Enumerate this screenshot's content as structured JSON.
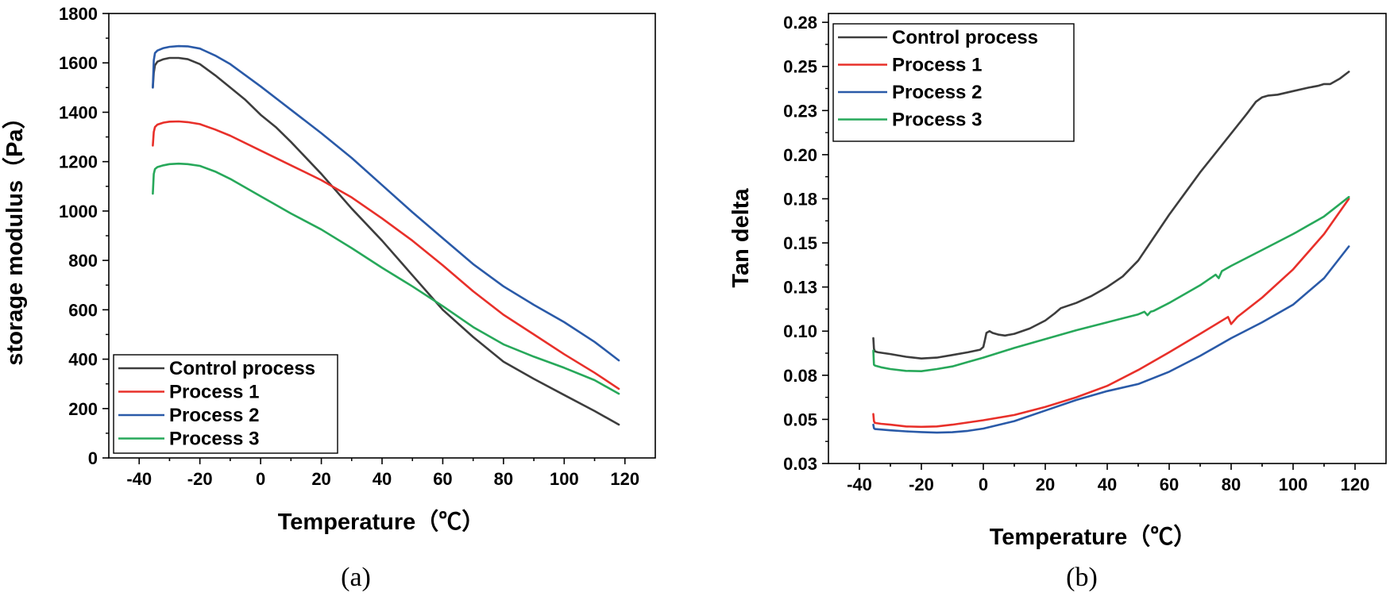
{
  "colors": {
    "Control process": "#3d3d3d",
    "Process 1": "#e8302a",
    "Process 2": "#2a5aa8",
    "Process 3": "#27a85a"
  },
  "chart_data": [
    {
      "type": "line",
      "caption": "(a)",
      "xlabel": "Temperature（℃）",
      "ylabel": "storage modulus（Pa）",
      "xlim": [
        -50,
        130
      ],
      "ylim": [
        0,
        1800
      ],
      "xticks": [
        -40,
        -20,
        0,
        20,
        40,
        60,
        80,
        100,
        120
      ],
      "yticks": [
        0,
        200,
        400,
        600,
        800,
        1000,
        1200,
        1400,
        1600,
        1800
      ],
      "xtick_labels": [
        "-40",
        "-20",
        "0",
        "20",
        "40",
        "60",
        "80",
        "100",
        "120"
      ],
      "ytick_labels": [
        "0",
        "200",
        "400",
        "600",
        "800",
        "1000",
        "1200",
        "1400",
        "1600",
        "1800"
      ],
      "legend_position": "bottom-left",
      "series": [
        {
          "name": "Control process",
          "x": [
            -35.5,
            -35.2,
            -34.8,
            -34,
            -32,
            -30,
            -27,
            -24,
            -20,
            -15,
            -10,
            -5,
            0,
            5,
            10,
            20,
            30,
            40,
            50,
            60,
            70,
            80,
            90,
            100,
            110,
            118
          ],
          "y": [
            1500,
            1560,
            1590,
            1605,
            1615,
            1620,
            1620,
            1615,
            1595,
            1550,
            1500,
            1450,
            1390,
            1340,
            1280,
            1150,
            1010,
            880,
            740,
            600,
            490,
            390,
            320,
            255,
            190,
            135
          ]
        },
        {
          "name": "Process 1",
          "x": [
            -35.5,
            -35.2,
            -34.8,
            -34,
            -32,
            -30,
            -27,
            -24,
            -20,
            -15,
            -10,
            0,
            10,
            20,
            30,
            40,
            50,
            60,
            70,
            80,
            90,
            100,
            110,
            118
          ],
          "y": [
            1265,
            1320,
            1340,
            1350,
            1358,
            1362,
            1363,
            1360,
            1352,
            1330,
            1305,
            1245,
            1185,
            1125,
            1055,
            970,
            880,
            780,
            675,
            580,
            500,
            420,
            345,
            280
          ]
        },
        {
          "name": "Process 2",
          "x": [
            -35.5,
            -35.2,
            -34.8,
            -34,
            -32,
            -30,
            -27,
            -24,
            -20,
            -15,
            -10,
            -5,
            0,
            10,
            20,
            30,
            40,
            50,
            60,
            70,
            80,
            90,
            100,
            110,
            118
          ],
          "y": [
            1500,
            1610,
            1640,
            1650,
            1660,
            1665,
            1668,
            1667,
            1658,
            1630,
            1595,
            1550,
            1505,
            1410,
            1315,
            1215,
            1105,
            995,
            890,
            785,
            695,
            620,
            550,
            470,
            395
          ]
        },
        {
          "name": "Process 3",
          "x": [
            -35.5,
            -35.2,
            -34.8,
            -34,
            -32,
            -30,
            -27,
            -24,
            -20,
            -15,
            -10,
            0,
            10,
            20,
            30,
            40,
            50,
            60,
            70,
            80,
            90,
            100,
            110,
            118
          ],
          "y": [
            1070,
            1150,
            1170,
            1178,
            1185,
            1190,
            1192,
            1190,
            1183,
            1160,
            1130,
            1060,
            990,
            925,
            850,
            770,
            695,
            615,
            530,
            460,
            410,
            365,
            315,
            260
          ]
        }
      ]
    },
    {
      "type": "line",
      "caption": "(b)",
      "xlabel": "Temperature（℃）",
      "ylabel": "Tan delta",
      "xlim": [
        -50,
        130
      ],
      "ylim": [
        0.025,
        0.28
      ],
      "xticks": [
        -40,
        -20,
        0,
        20,
        40,
        60,
        80,
        100,
        120
      ],
      "yticks": [
        0.025,
        0.05,
        0.075,
        0.1,
        0.125,
        0.15,
        0.175,
        0.2,
        0.225,
        0.25,
        0.275
      ],
      "xtick_labels": [
        "-40",
        "-20",
        "0",
        "20",
        "40",
        "60",
        "80",
        "100",
        "120"
      ],
      "ytick_labels": [
        "0.03",
        "0.05",
        "0.08",
        "0.10",
        "0.13",
        "0.15",
        "0.18",
        "0.20",
        "0.23",
        "0.25",
        "0.28"
      ],
      "legend_position": "top-left",
      "series": [
        {
          "name": "Control process",
          "x": [
            -35.5,
            -35.3,
            -35,
            -34,
            -30,
            -25,
            -20,
            -15,
            -10,
            -5,
            -1,
            0,
            0.5,
            1,
            2,
            3,
            5,
            7,
            10,
            15,
            20,
            23,
            25,
            30,
            35,
            40,
            45,
            50,
            55,
            60,
            65,
            70,
            75,
            80,
            85,
            88,
            90,
            92,
            95,
            100,
            105,
            108,
            110,
            112,
            115,
            118
          ],
          "y": [
            0.096,
            0.09,
            0.0885,
            0.088,
            0.087,
            0.0855,
            0.0845,
            0.085,
            0.0865,
            0.088,
            0.0895,
            0.091,
            0.095,
            0.099,
            0.1,
            0.099,
            0.098,
            0.0975,
            0.0985,
            0.1015,
            0.106,
            0.11,
            0.113,
            0.116,
            0.12,
            0.125,
            0.131,
            0.14,
            0.153,
            0.166,
            0.178,
            0.19,
            0.201,
            0.212,
            0.223,
            0.23,
            0.2325,
            0.2335,
            0.234,
            0.236,
            0.238,
            0.239,
            0.24,
            0.24,
            0.243,
            0.247
          ]
        },
        {
          "name": "Process 1",
          "x": [
            -35.5,
            -35.3,
            -35,
            -33,
            -30,
            -25,
            -20,
            -15,
            -10,
            0,
            10,
            20,
            30,
            40,
            50,
            60,
            70,
            78,
            79,
            80,
            81,
            82,
            90,
            100,
            110,
            118
          ],
          "y": [
            0.053,
            0.049,
            0.048,
            0.0475,
            0.047,
            0.046,
            0.0458,
            0.046,
            0.047,
            0.0495,
            0.0525,
            0.057,
            0.0625,
            0.069,
            0.078,
            0.088,
            0.0985,
            0.107,
            0.108,
            0.104,
            0.106,
            0.108,
            0.119,
            0.135,
            0.155,
            0.175
          ]
        },
        {
          "name": "Process 2",
          "x": [
            -35.5,
            -35.3,
            -35,
            -30,
            -25,
            -20,
            -15,
            -10,
            -5,
            0,
            10,
            20,
            30,
            40,
            50,
            60,
            70,
            80,
            90,
            100,
            110,
            118
          ],
          "y": [
            0.047,
            0.045,
            0.0445,
            0.0438,
            0.0432,
            0.0428,
            0.0425,
            0.0427,
            0.0435,
            0.0448,
            0.049,
            0.055,
            0.061,
            0.066,
            0.07,
            0.077,
            0.086,
            0.096,
            0.105,
            0.115,
            0.13,
            0.148
          ]
        },
        {
          "name": "Process 3",
          "x": [
            -35.5,
            -35.3,
            -35,
            -33,
            -30,
            -25,
            -20,
            -15,
            -10,
            -5,
            0,
            10,
            20,
            30,
            40,
            50,
            52,
            53,
            54,
            55,
            60,
            70,
            75,
            76,
            77,
            80,
            90,
            100,
            101,
            102,
            110,
            118
          ],
          "y": [
            0.089,
            0.081,
            0.0805,
            0.0795,
            0.0785,
            0.0775,
            0.0773,
            0.0785,
            0.08,
            0.0825,
            0.085,
            0.0905,
            0.0955,
            0.1005,
            0.105,
            0.1095,
            0.111,
            0.109,
            0.111,
            0.1115,
            0.116,
            0.126,
            0.132,
            0.13,
            0.134,
            0.137,
            0.146,
            0.155,
            0.156,
            0.157,
            0.165,
            0.176
          ]
        }
      ]
    }
  ]
}
